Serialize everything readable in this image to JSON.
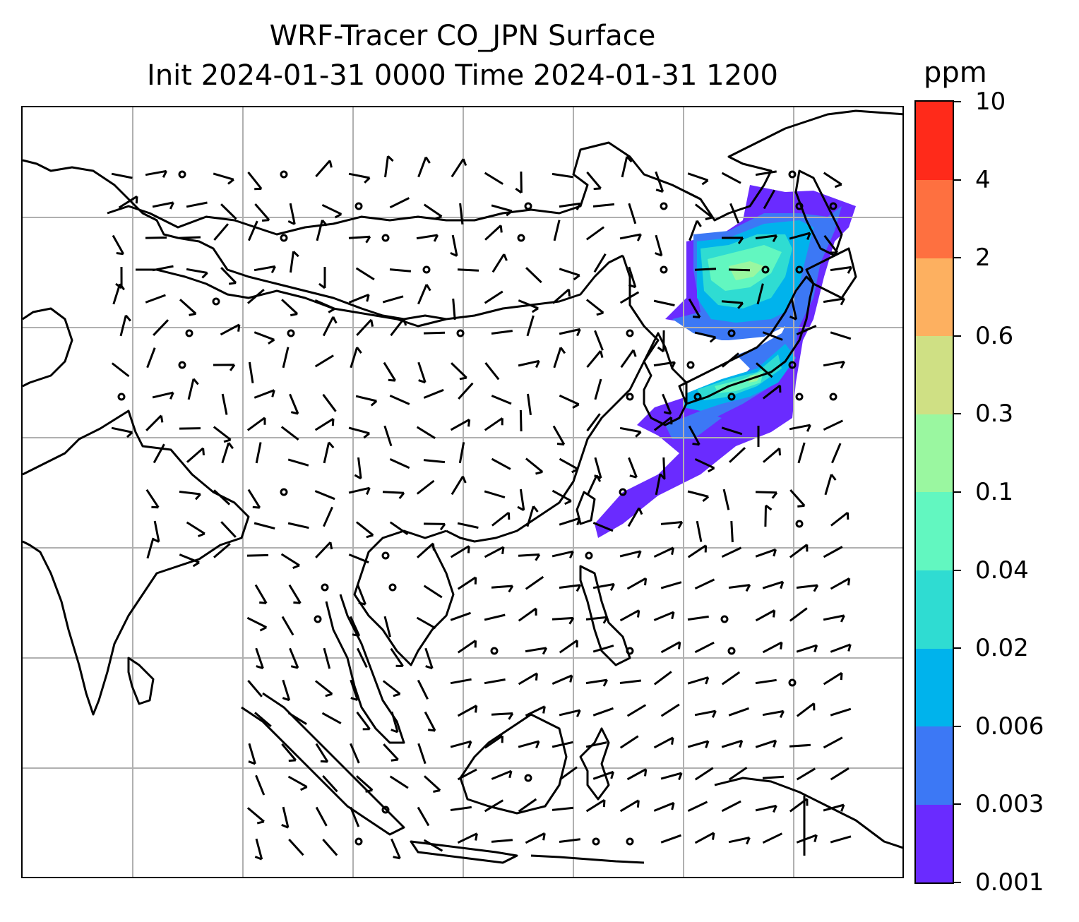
{
  "title": {
    "line1": "WRF-Tracer CO_JPN Surface",
    "line2": "Init 2024-01-31 0000 Time 2024-01-31 1200"
  },
  "colorbar": {
    "unit": "ppm",
    "levels": [
      "0.001",
      "0.003",
      "0.006",
      "0.02",
      "0.04",
      "0.1",
      "0.3",
      "0.6",
      "2",
      "4",
      "10"
    ],
    "colors": [
      "#6a2bff",
      "#3c78f5",
      "#00b3ec",
      "#2fdcd2",
      "#62f7c0",
      "#9af7a0",
      "#cfe084",
      "#fdb060",
      "#fe7040",
      "#ff2a1a"
    ]
  },
  "map": {
    "projection_gridlines": true,
    "overlay": "wind barbs",
    "field": "CO_JPN tracer plume east of Japan",
    "coastline_color": "#000000",
    "gridline_color": "#b0b0b0"
  }
}
